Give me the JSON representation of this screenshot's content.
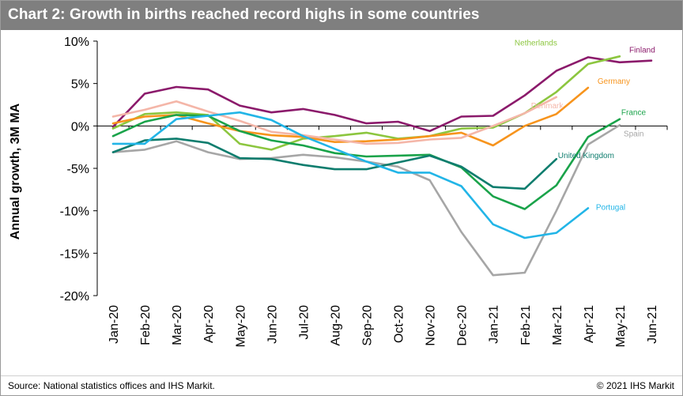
{
  "header": {
    "title": "Chart 2: Growth in births reached record highs in some countries"
  },
  "footer": {
    "source": "Source: National statistics offices and IHS Markit.",
    "copyright": "© 2021 IHS Markit"
  },
  "chart_data": {
    "type": "line",
    "title": "Chart 2: Growth in births reached record highs in some countries",
    "xlabel": "",
    "ylabel": "Annual growth, 3M MA",
    "ylim": [
      -20,
      10
    ],
    "yticks": [
      10,
      5,
      0,
      -5,
      -10,
      -15,
      -20
    ],
    "ytick_labels": [
      "10%",
      "5%",
      "0%",
      "-5%",
      "-10%",
      "-15%",
      "-20%"
    ],
    "categories": [
      "Jan-20",
      "Feb-20",
      "Mar-20",
      "Apr-20",
      "May-20",
      "Jun-20",
      "Jul-20",
      "Aug-20",
      "Sep-20",
      "Oct-20",
      "Nov-20",
      "Dec-20",
      "Jan-21",
      "Feb-21",
      "Mar-21",
      "Apr-21",
      "May-21",
      "Jun-21"
    ],
    "grid": false,
    "legend": "inline labels",
    "series": [
      {
        "name": "Finland",
        "color": "#8b1a6b",
        "values": [
          -0.1,
          3.8,
          4.6,
          4.3,
          2.4,
          1.6,
          2.0,
          1.3,
          0.3,
          0.5,
          -0.6,
          1.1,
          1.2,
          3.6,
          6.5,
          8.1,
          7.5,
          7.7
        ]
      },
      {
        "name": "Netherlands",
        "color": "#8cc63f",
        "values": [
          -0.3,
          1.4,
          1.6,
          1.3,
          -2.1,
          -2.8,
          -1.5,
          -1.2,
          -0.8,
          -1.5,
          -1.2,
          -0.3,
          -0.2,
          1.5,
          4.0,
          7.3,
          8.2,
          null
        ]
      },
      {
        "name": "Germany",
        "color": "#f7941d",
        "values": [
          0.3,
          1.1,
          1.3,
          0.3,
          -0.6,
          -1.1,
          -1.3,
          -1.9,
          -1.8,
          -1.6,
          -1.2,
          -0.8,
          -2.3,
          0.0,
          1.4,
          4.5,
          null,
          null
        ]
      },
      {
        "name": "Denmark",
        "color": "#f4b6a8",
        "values": [
          1.1,
          1.9,
          2.9,
          1.7,
          0.6,
          -0.7,
          -1.1,
          -1.6,
          -2.1,
          -2.0,
          -1.6,
          -1.4,
          0.0,
          1.5,
          3.4,
          null,
          null,
          null
        ]
      },
      {
        "name": "France",
        "color": "#1aa34a",
        "values": [
          -1.2,
          0.5,
          1.3,
          1.2,
          -0.6,
          -1.7,
          -2.3,
          -3.2,
          -3.6,
          -3.5,
          -3.4,
          -4.9,
          -8.3,
          -9.8,
          -7.0,
          -1.3,
          0.8,
          null
        ]
      },
      {
        "name": "Spain",
        "color": "#a6a6a6",
        "values": [
          -3.1,
          -2.8,
          -1.8,
          -3.1,
          -3.9,
          -3.8,
          -3.4,
          -3.7,
          -4.2,
          -4.8,
          -6.4,
          -12.5,
          -17.6,
          -17.3,
          -10.0,
          -2.2,
          0.1,
          null
        ]
      },
      {
        "name": "United Kingdom",
        "color": "#0e7d6e",
        "values": [
          -3.1,
          -1.7,
          -1.5,
          -2.0,
          -3.8,
          -3.9,
          -4.6,
          -5.1,
          -5.1,
          -4.3,
          -3.5,
          -4.8,
          -7.2,
          -7.4,
          -3.9,
          null,
          null,
          null
        ]
      },
      {
        "name": "Portugal",
        "color": "#22b5e7",
        "values": [
          -2.1,
          -2.1,
          0.8,
          1.2,
          1.6,
          0.7,
          -1.2,
          -2.7,
          -4.2,
          -5.5,
          -5.5,
          -7.1,
          -11.6,
          -13.2,
          -12.6,
          -9.7,
          null,
          null
        ]
      }
    ]
  }
}
